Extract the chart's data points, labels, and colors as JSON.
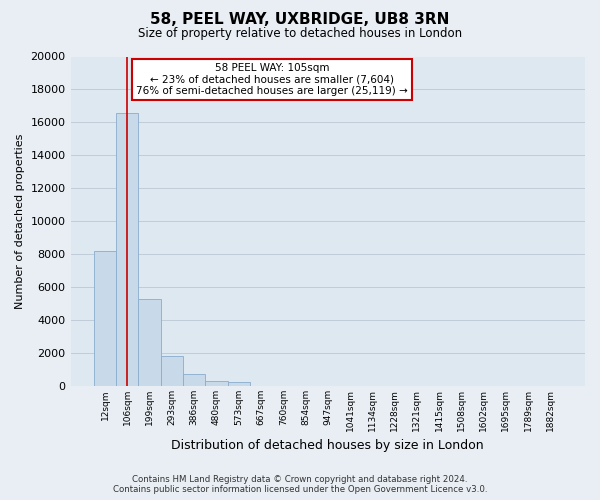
{
  "title": "58, PEEL WAY, UXBRIDGE, UB8 3RN",
  "subtitle": "Size of property relative to detached houses in London",
  "xlabel": "Distribution of detached houses by size in London",
  "ylabel": "Number of detached properties",
  "bar_color": "#c8daea",
  "bar_edge_color": "#8aaccc",
  "categories": [
    "12sqm",
    "106sqm",
    "199sqm",
    "293sqm",
    "386sqm",
    "480sqm",
    "573sqm",
    "667sqm",
    "760sqm",
    "854sqm",
    "947sqm",
    "1041sqm",
    "1134sqm",
    "1228sqm",
    "1321sqm",
    "1415sqm",
    "1508sqm",
    "1602sqm",
    "1695sqm",
    "1789sqm",
    "1882sqm"
  ],
  "values": [
    8200,
    16600,
    5300,
    1850,
    750,
    300,
    270,
    0,
    0,
    0,
    0,
    0,
    0,
    0,
    0,
    0,
    0,
    0,
    0,
    0,
    0
  ],
  "ylim": [
    0,
    20000
  ],
  "yticks": [
    0,
    2000,
    4000,
    6000,
    8000,
    10000,
    12000,
    14000,
    16000,
    18000,
    20000
  ],
  "annotation_title": "58 PEEL WAY: 105sqm",
  "annotation_line1": "← 23% of detached houses are smaller (7,604)",
  "annotation_line2": "76% of semi-detached houses are larger (25,119) →",
  "annotation_box_color": "#ffffff",
  "annotation_box_edge": "#cc0000",
  "marker_line_color": "#cc0000",
  "footer_line1": "Contains HM Land Registry data © Crown copyright and database right 2024.",
  "footer_line2": "Contains public sector information licensed under the Open Government Licence v3.0.",
  "bg_color": "#e8eef4",
  "plot_bg_color": "#dde8f0",
  "grid_color": "#c0ccd8"
}
